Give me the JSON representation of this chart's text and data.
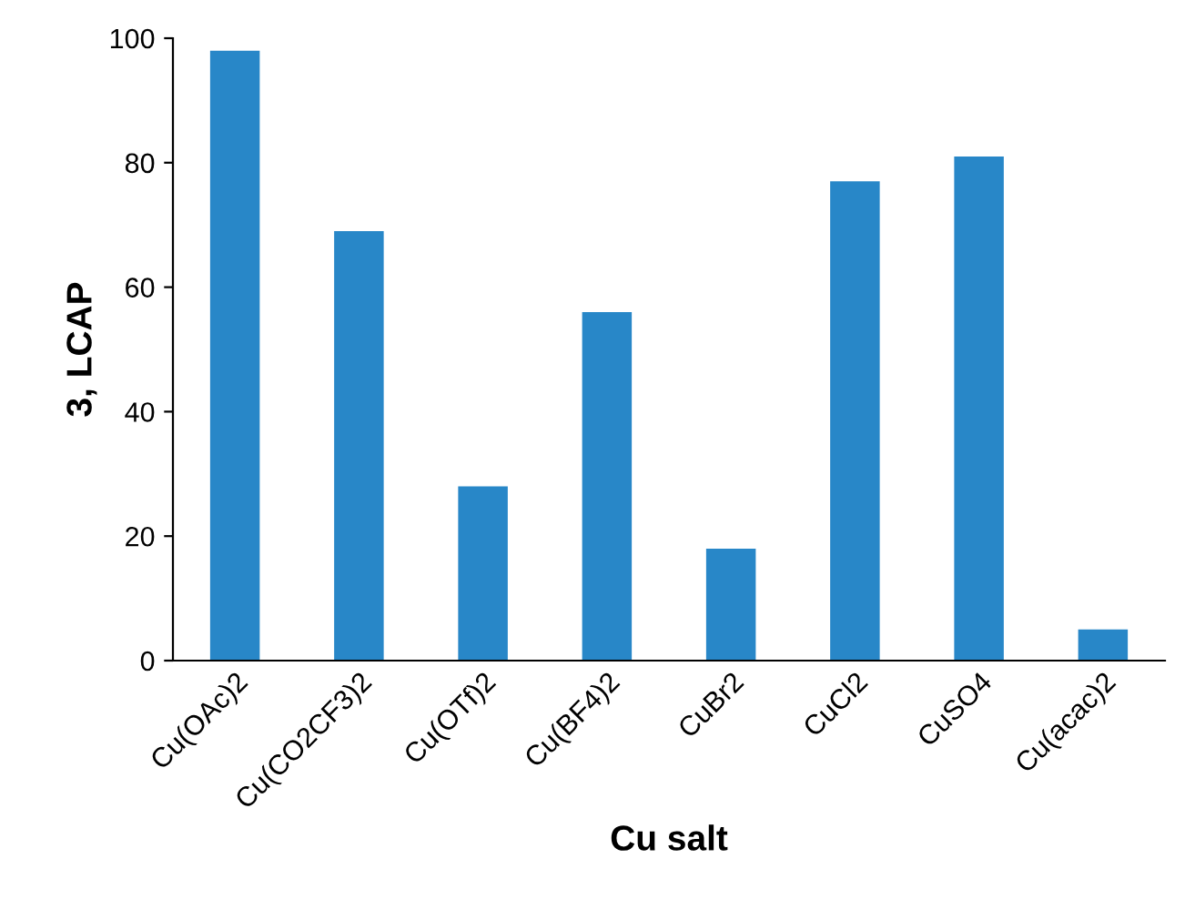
{
  "chart_data": {
    "type": "bar",
    "xlabel": "Cu salt",
    "ylabel": "3, LCAP",
    "categories": [
      "Cu(OAc)2",
      "Cu(CO2CF3)2",
      "Cu(OTf)2",
      "Cu(BF4)2",
      "CuBr2",
      "CuCl2",
      "CuSO4",
      "Cu(acac)2"
    ],
    "values": [
      98,
      69,
      28,
      56,
      18,
      77,
      81,
      5
    ],
    "color": "#2887c8",
    "ylim": [
      0,
      100
    ],
    "yticks": [
      0,
      20,
      40,
      60,
      80,
      100
    ],
    "grid": false,
    "legend": false
  }
}
